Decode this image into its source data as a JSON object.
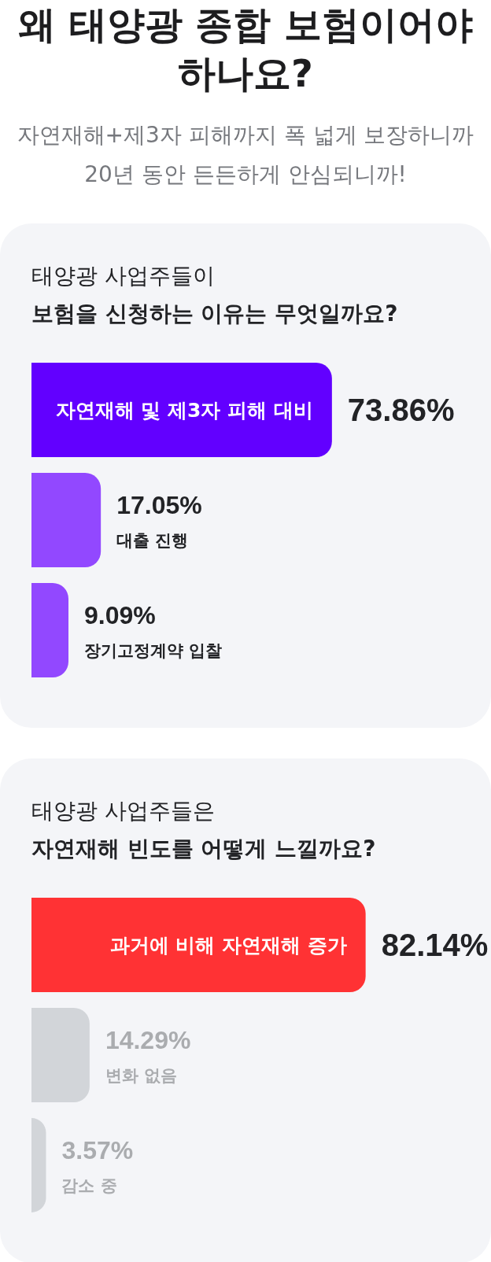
{
  "chart_data": [
    {
      "type": "bar",
      "orientation": "horizontal",
      "annotations": [
        "왜 태양광 종합 보험이어야 하나요?",
        "자연재해+제3자 피해까지 폭 넓게 보장하니까 20년 동안 든든하게 안심되니까!"
      ],
      "subtitle": "태양광 사업주들이",
      "title": "보험을 신청하는 이유는 무엇일까요?",
      "categories": [
        "자연재해 및 제3자 피해 대비",
        "대출 진행",
        "장기고정계약 입찰"
      ],
      "values": [
        73.86,
        17.05,
        9.09
      ],
      "value_labels": [
        "73.86%",
        "17.05%",
        "9.09%"
      ],
      "colors": [
        "#6200ff",
        "#9248ff",
        "#9248ff"
      ]
    },
    {
      "type": "bar",
      "orientation": "horizontal",
      "subtitle": "태양광 사업주들은",
      "title": "자연재해 빈도를 어떻게 느낄까요?",
      "categories": [
        "과거에 비해 자연재해 증가",
        "변화 없음",
        "감소 중"
      ],
      "values": [
        82.14,
        14.29,
        3.57
      ],
      "value_labels": [
        "82.14%",
        "14.29%",
        "3.57%"
      ],
      "colors": [
        "#ff3234",
        "#d2d5d9",
        "#d2d5d9"
      ]
    }
  ]
}
